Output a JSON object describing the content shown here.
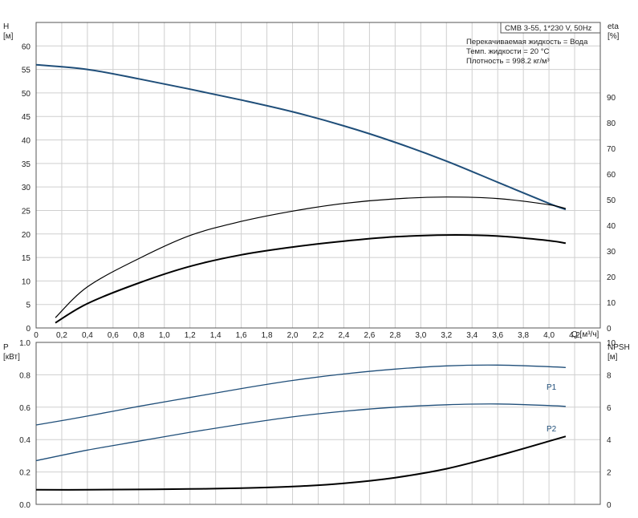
{
  "chart_data": [
    {
      "type": "line",
      "title": "CMB 3-55, 1*230 V, 50Hz",
      "info_lines": [
        "Перекачиваемая жидкость = Вода",
        "Темп. жидкости = 20 °C",
        "Плотность = 998.2 кг/м³"
      ],
      "ylabel_left": "H",
      "ylabel_left_unit": "[м]",
      "ylabel_right": "eta",
      "ylabel_right_unit": "[%]",
      "xlabel": "Q [м³/ч]",
      "x_ticks": [
        "0",
        "0,2",
        "0,4",
        "0,6",
        "0,8",
        "1,0",
        "1,2",
        "1,4",
        "1,6",
        "1,8",
        "2,0",
        "2,2",
        "2,4",
        "2,6",
        "2,8",
        "3,0",
        "3,2",
        "3,4",
        "3,6",
        "3,8",
        "4,0",
        "4,2"
      ],
      "y_left_ticks": [
        "0",
        "5",
        "10",
        "15",
        "20",
        "25",
        "30",
        "35",
        "40",
        "45",
        "50",
        "55",
        "60"
      ],
      "y_right_ticks": [
        "0",
        "10",
        "20",
        "30",
        "40",
        "50",
        "60",
        "70",
        "80",
        "90"
      ],
      "xlim": [
        0,
        4.4
      ],
      "ylim_left": [
        0,
        65
      ],
      "ylim_right": [
        0,
        119
      ],
      "series": [
        {
          "color": "#1f4e79",
          "axis": "left",
          "x": [
            0,
            0.4,
            0.8,
            1.2,
            1.6,
            2.0,
            2.4,
            2.8,
            3.2,
            3.6,
            4.0,
            4.13
          ],
          "y": [
            56,
            55,
            53,
            50.8,
            48.5,
            46,
            43,
            39.5,
            35.5,
            31,
            26.5,
            25.2
          ]
        },
        {
          "color": "#000000",
          "axis": "right",
          "x": [
            0.15,
            0.4,
            0.8,
            1.2,
            1.6,
            2.0,
            2.4,
            2.8,
            3.2,
            3.6,
            4.0,
            4.13
          ],
          "y": [
            4,
            16,
            27,
            36,
            41.5,
            45.5,
            48.5,
            50.3,
            51,
            50.4,
            48,
            46.5
          ]
        },
        {
          "color": "#000000",
          "axis": "right",
          "x": [
            0.15,
            0.4,
            0.8,
            1.2,
            1.6,
            2.0,
            2.4,
            2.8,
            3.2,
            3.6,
            4.0,
            4.13
          ],
          "y": [
            2,
            9.5,
            17.5,
            24,
            28.5,
            31.5,
            33.8,
            35.5,
            36.2,
            35.8,
            34,
            33
          ]
        }
      ]
    },
    {
      "type": "line",
      "ylabel_left": "P",
      "ylabel_left_unit": "[кВт]",
      "ylabel_right": "NPSH",
      "ylabel_right_unit": "[м]",
      "y_left_ticks": [
        "0.0",
        "0.2",
        "0.4",
        "0.6",
        "0.8",
        "1.0"
      ],
      "y_right_ticks": [
        "0",
        "2",
        "4",
        "6",
        "8",
        "10"
      ],
      "xlim": [
        0,
        4.4
      ],
      "ylim_left": [
        0,
        1.0
      ],
      "ylim_right": [
        0,
        10
      ],
      "series": [
        {
          "name": "P1",
          "color": "#1f4e79",
          "axis": "left",
          "x": [
            0,
            0.4,
            0.8,
            1.2,
            1.6,
            2.0,
            2.4,
            2.8,
            3.2,
            3.6,
            4.0,
            4.13
          ],
          "y": [
            0.49,
            0.545,
            0.605,
            0.66,
            0.715,
            0.765,
            0.805,
            0.835,
            0.855,
            0.86,
            0.85,
            0.845
          ]
        },
        {
          "name": "P2",
          "color": "#1f4e79",
          "axis": "left",
          "x": [
            0,
            0.4,
            0.8,
            1.2,
            1.6,
            2.0,
            2.4,
            2.8,
            3.2,
            3.6,
            4.0,
            4.13
          ],
          "y": [
            0.27,
            0.335,
            0.39,
            0.445,
            0.495,
            0.54,
            0.575,
            0.6,
            0.615,
            0.62,
            0.61,
            0.605
          ]
        },
        {
          "color": "#000000",
          "axis": "right",
          "x": [
            0,
            0.4,
            0.8,
            1.2,
            1.6,
            2.0,
            2.4,
            2.8,
            3.2,
            3.6,
            4.0,
            4.13
          ],
          "y": [
            0.9,
            0.9,
            0.92,
            0.95,
            1.0,
            1.1,
            1.3,
            1.65,
            2.2,
            3.0,
            3.9,
            4.2
          ]
        }
      ]
    }
  ]
}
